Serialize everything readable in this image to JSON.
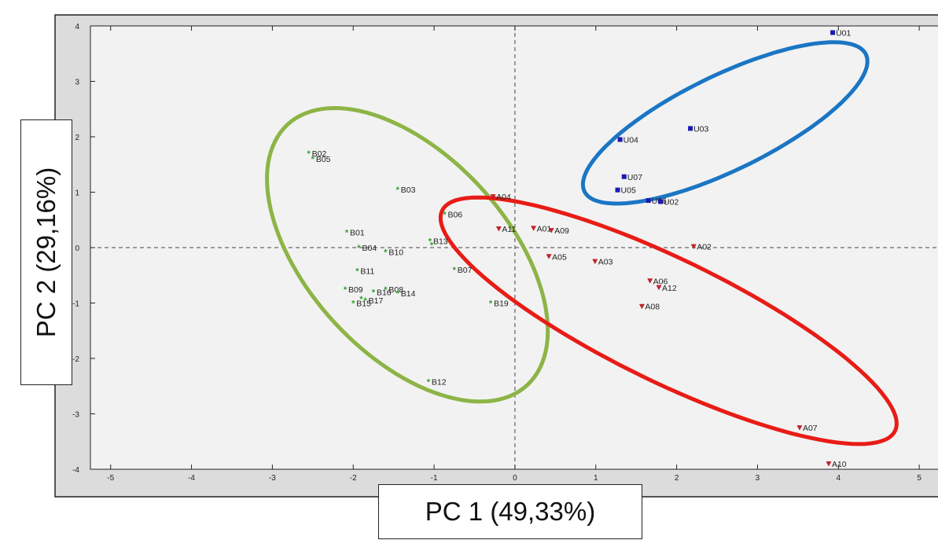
{
  "chart_data": {
    "type": "scatter",
    "xlabel": "PC 1 (49,33%)",
    "ylabel": "PC 2 (29,16%)",
    "xlim": [
      -5.25,
      5.3
    ],
    "ylim": [
      -4,
      4
    ],
    "xticks": [
      -5,
      -4,
      -3,
      -2,
      -1,
      0,
      1,
      2,
      3,
      4,
      5
    ],
    "yticks": [
      -4,
      -3,
      -2,
      -1,
      0,
      1,
      2,
      3,
      4
    ],
    "grid": false,
    "zero_lines": true,
    "series": [
      {
        "marker": "star",
        "color": "#2e9e2e",
        "points": [
          {
            "label": "B02",
            "x": -2.55,
            "y": 1.7
          },
          {
            "label": "B05",
            "x": -2.5,
            "y": 1.6
          },
          {
            "label": "B03",
            "x": -1.45,
            "y": 1.05
          },
          {
            "label": "B06",
            "x": -0.87,
            "y": 0.6
          },
          {
            "label": "B01",
            "x": -2.08,
            "y": 0.28
          },
          {
            "label": "B04",
            "x": -1.93,
            "y": 0.0
          },
          {
            "label": "B10",
            "x": -1.6,
            "y": -0.08
          },
          {
            "label": "B13",
            "x": -1.05,
            "y": 0.12
          },
          {
            "label": "",
            "x": -1.03,
            "y": 0.05
          },
          {
            "label": "B07",
            "x": -0.75,
            "y": -0.4
          },
          {
            "label": "B11",
            "x": -1.95,
            "y": -0.42
          },
          {
            "label": "B09",
            "x": -2.1,
            "y": -0.75
          },
          {
            "label": "B08",
            "x": -1.6,
            "y": -0.75
          },
          {
            "label": "B16",
            "x": -1.75,
            "y": -0.8
          },
          {
            "label": "B14",
            "x": -1.45,
            "y": -0.82
          },
          {
            "label": "",
            "x": -1.9,
            "y": -0.92
          },
          {
            "label": "B15",
            "x": -2.0,
            "y": -1.0
          },
          {
            "label": "B17",
            "x": -1.85,
            "y": -0.95
          },
          {
            "label": "B19",
            "x": -0.3,
            "y": -1.0
          },
          {
            "label": "B12",
            "x": -1.07,
            "y": -2.42
          }
        ]
      },
      {
        "marker": "triangle-down",
        "color": "#c0222a",
        "points": [
          {
            "label": "A04",
            "x": -0.27,
            "y": 0.92
          },
          {
            "label": "A11",
            "x": -0.2,
            "y": 0.34
          },
          {
            "label": "A01",
            "x": 0.23,
            "y": 0.35
          },
          {
            "label": "A09",
            "x": 0.45,
            "y": 0.31
          },
          {
            "label": "A05",
            "x": 0.42,
            "y": -0.16
          },
          {
            "label": "A03",
            "x": 0.99,
            "y": -0.25
          },
          {
            "label": "A02",
            "x": 2.21,
            "y": 0.02
          },
          {
            "label": "A06",
            "x": 1.67,
            "y": -0.6
          },
          {
            "label": "A12",
            "x": 1.78,
            "y": -0.72
          },
          {
            "label": "A08",
            "x": 1.57,
            "y": -1.06
          },
          {
            "label": "A07",
            "x": 3.52,
            "y": -3.25
          },
          {
            "label": "A10",
            "x": 3.88,
            "y": -3.9
          }
        ]
      },
      {
        "marker": "square",
        "color": "#1a1ab0",
        "points": [
          {
            "label": "U01",
            "x": 3.93,
            "y": 3.88
          },
          {
            "label": "U03",
            "x": 2.17,
            "y": 2.15
          },
          {
            "label": "U04",
            "x": 1.3,
            "y": 1.95
          },
          {
            "label": "U07",
            "x": 1.35,
            "y": 1.28
          },
          {
            "label": "U06",
            "x": 1.65,
            "y": 0.85
          },
          {
            "label": "U05",
            "x": 1.27,
            "y": 1.04
          },
          {
            "label": "U02",
            "x": 1.8,
            "y": 0.83
          }
        ]
      }
    ],
    "ellipses": [
      {
        "color": "#8db446",
        "cx": -1.33,
        "cy": -0.13,
        "rx": 2.85,
        "ry": 1.38,
        "angle_deg": -65
      },
      {
        "color": "#e81c16",
        "cx": 1.9,
        "cy": -1.32,
        "rx": 3.45,
        "ry": 1.0,
        "angle_deg": -37
      },
      {
        "color": "#1a76c4",
        "cx": 2.6,
        "cy": 2.25,
        "rx": 2.15,
        "ry": 0.77,
        "angle_deg": 38
      }
    ]
  }
}
